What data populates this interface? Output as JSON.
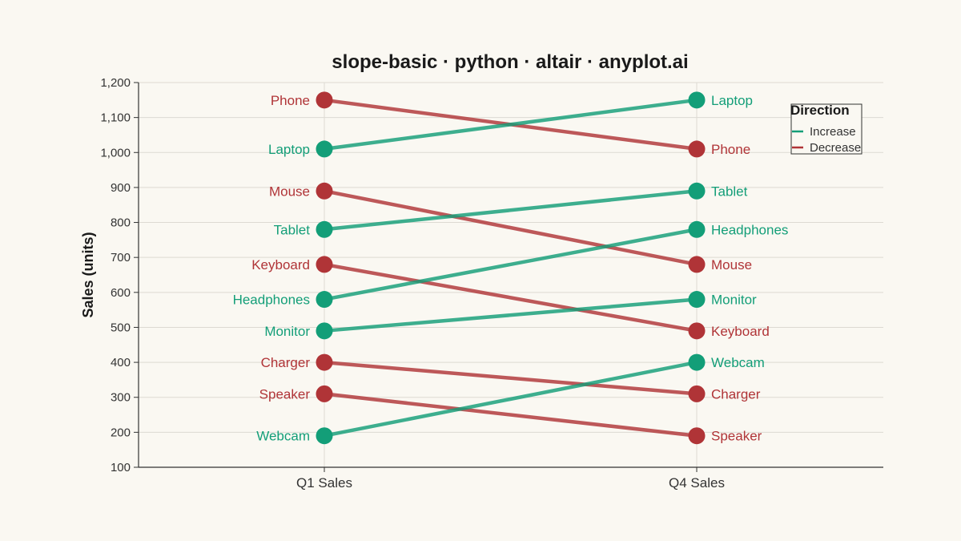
{
  "chart_data": {
    "type": "line",
    "title": "slope-basic · python · altair · anyplot.ai",
    "ylabel": "Sales (units)",
    "xlabel": "",
    "categories": [
      "Q1 Sales",
      "Q4 Sales"
    ],
    "ylim": [
      100,
      1200
    ],
    "yticks": [
      100,
      200,
      300,
      400,
      500,
      600,
      700,
      800,
      900,
      1000,
      1100,
      1200
    ],
    "ytick_labels": [
      "100",
      "200",
      "300",
      "400",
      "500",
      "600",
      "700",
      "800",
      "900",
      "1,000",
      "1,100",
      "1,200"
    ],
    "grid": true,
    "legend": {
      "title": "Direction",
      "placement": "top-right",
      "entries": [
        {
          "label": "Increase",
          "color": "#139E78"
        },
        {
          "label": "Decrease",
          "color": "#B03437"
        }
      ]
    },
    "colors": {
      "increase": "#139E78",
      "decrease": "#B03437"
    },
    "series": [
      {
        "name": "Phone",
        "values": [
          1150,
          1010
        ],
        "direction": "Decrease"
      },
      {
        "name": "Laptop",
        "values": [
          1010,
          1150
        ],
        "direction": "Increase"
      },
      {
        "name": "Mouse",
        "values": [
          890,
          680
        ],
        "direction": "Decrease"
      },
      {
        "name": "Tablet",
        "values": [
          780,
          890
        ],
        "direction": "Increase"
      },
      {
        "name": "Keyboard",
        "values": [
          680,
          490
        ],
        "direction": "Decrease"
      },
      {
        "name": "Headphones",
        "values": [
          580,
          780
        ],
        "direction": "Increase"
      },
      {
        "name": "Monitor",
        "values": [
          490,
          580
        ],
        "direction": "Increase"
      },
      {
        "name": "Charger",
        "values": [
          400,
          310
        ],
        "direction": "Decrease"
      },
      {
        "name": "Speaker",
        "values": [
          310,
          190
        ],
        "direction": "Decrease"
      },
      {
        "name": "Webcam",
        "values": [
          190,
          400
        ],
        "direction": "Increase"
      }
    ]
  }
}
